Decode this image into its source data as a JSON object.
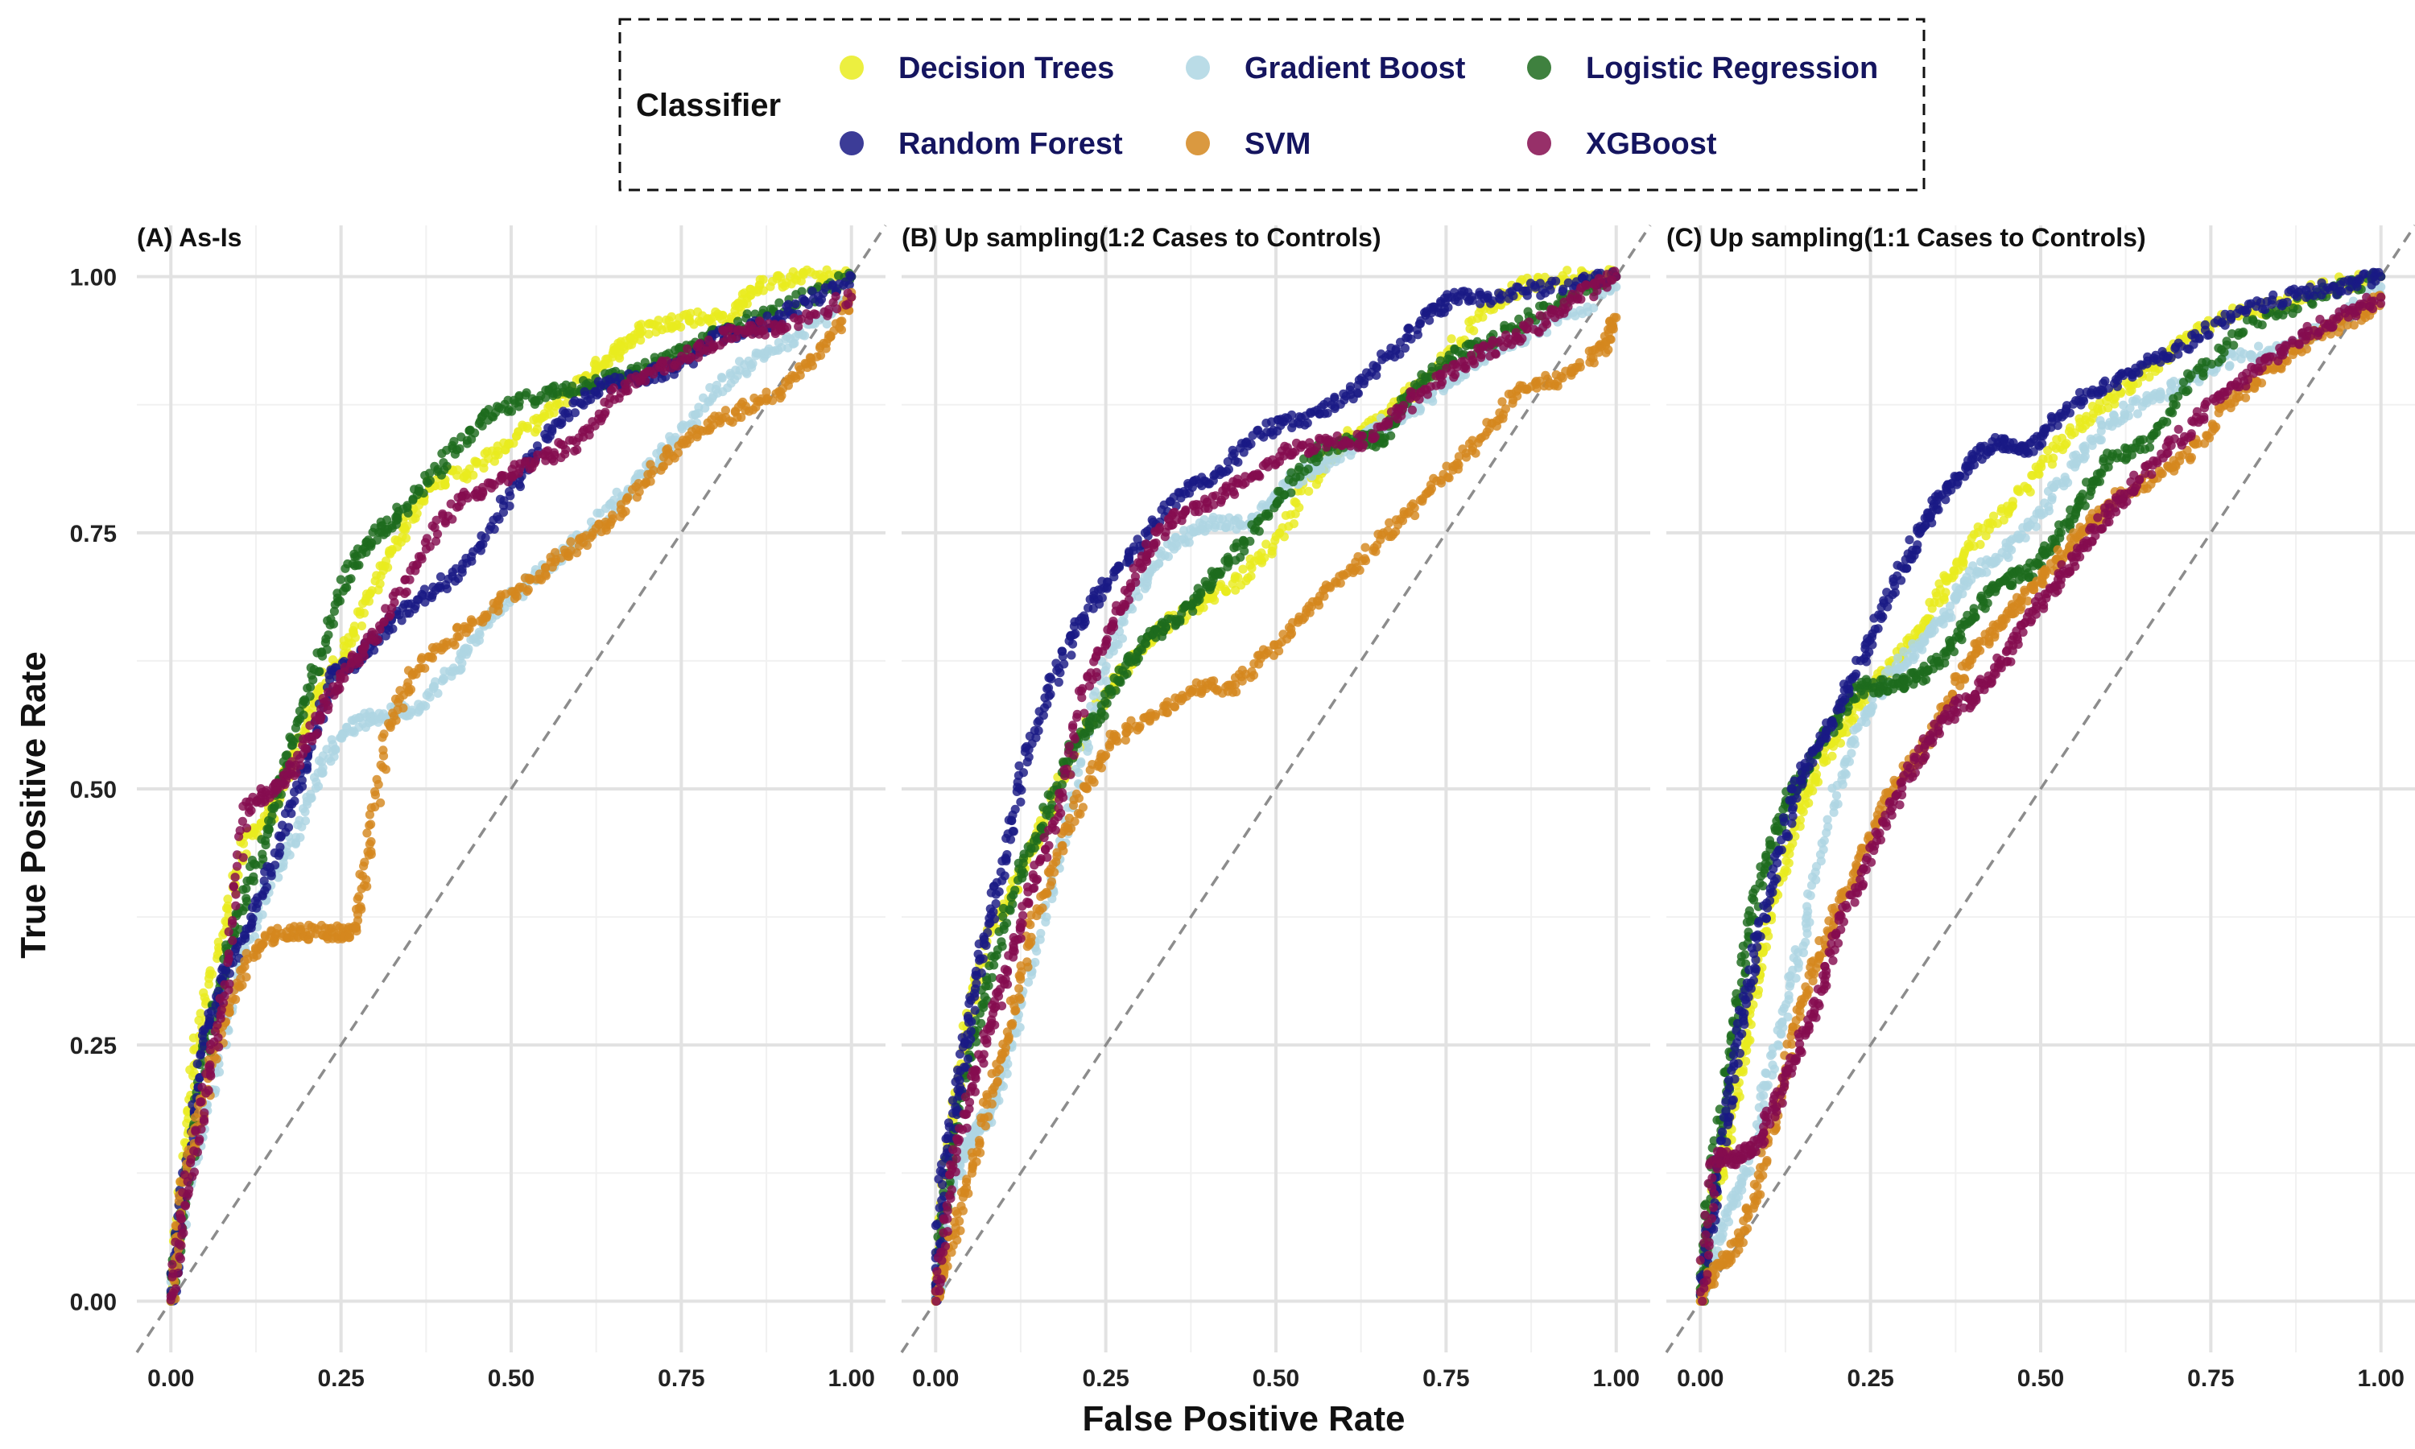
{
  "chart_data": {
    "type": "scatter",
    "xlabel": "False Positive Rate",
    "ylabel": "True Positive Rate",
    "xlim": [
      -0.05,
      1.05
    ],
    "ylim": [
      -0.05,
      1.05
    ],
    "x_ticks": [
      "0.00",
      "0.25",
      "0.50",
      "0.75",
      "1.00"
    ],
    "y_ticks": [
      "0.00",
      "0.25",
      "0.50",
      "0.75",
      "1.00"
    ],
    "grid": true,
    "reference_line": "diagonal dashed",
    "legend": {
      "title": "Classifier",
      "placement": "top-center",
      "entries": [
        {
          "name": "Decision Trees",
          "color": "#e9ec1f"
        },
        {
          "name": "Gradient Boost",
          "color": "#aed6e3"
        },
        {
          "name": "Logistic Regression",
          "color": "#1d6b1d"
        },
        {
          "name": "Random Forest",
          "color": "#1a1a85"
        },
        {
          "name": "SVM",
          "color": "#d4871e"
        },
        {
          "name": "XGBoost",
          "color": "#850c4f"
        }
      ]
    },
    "panels": [
      {
        "title": "(A) As-Is",
        "series": [
          {
            "name": "Decision Trees",
            "x": [
              0,
              0.02,
              0.04,
              0.08,
              0.11,
              0.15,
              0.18,
              0.22,
              0.26,
              0.3,
              0.34,
              0.38,
              0.44,
              0.5,
              0.56,
              0.62,
              0.66,
              0.7,
              0.76,
              0.82,
              0.86,
              0.92,
              1.0
            ],
            "y": [
              0,
              0.15,
              0.26,
              0.37,
              0.45,
              0.48,
              0.53,
              0.6,
              0.64,
              0.7,
              0.75,
              0.8,
              0.81,
              0.84,
              0.87,
              0.91,
              0.93,
              0.95,
              0.96,
              0.96,
              0.99,
              1.0,
              1.0
            ]
          },
          {
            "name": "Gradient Boost",
            "x": [
              0,
              0.03,
              0.06,
              0.1,
              0.14,
              0.18,
              0.22,
              0.26,
              0.3,
              0.36,
              0.42,
              0.46,
              0.52,
              0.58,
              0.64,
              0.7,
              0.74,
              0.8,
              0.86,
              0.92,
              1.0
            ],
            "y": [
              0,
              0.13,
              0.2,
              0.33,
              0.4,
              0.45,
              0.52,
              0.56,
              0.57,
              0.58,
              0.62,
              0.66,
              0.7,
              0.73,
              0.77,
              0.81,
              0.84,
              0.89,
              0.92,
              0.94,
              0.98
            ]
          },
          {
            "name": "Logistic Regression",
            "x": [
              0,
              0.02,
              0.05,
              0.08,
              0.11,
              0.15,
              0.18,
              0.22,
              0.26,
              0.3,
              0.34,
              0.4,
              0.46,
              0.52,
              0.58,
              0.64,
              0.7,
              0.76,
              0.82,
              0.9,
              1.0
            ],
            "y": [
              0,
              0.1,
              0.24,
              0.33,
              0.4,
              0.47,
              0.55,
              0.63,
              0.71,
              0.75,
              0.77,
              0.82,
              0.86,
              0.88,
              0.89,
              0.9,
              0.91,
              0.93,
              0.95,
              0.97,
              1.0
            ]
          },
          {
            "name": "Random Forest",
            "x": [
              0,
              0.02,
              0.05,
              0.08,
              0.12,
              0.16,
              0.2,
              0.24,
              0.28,
              0.32,
              0.38,
              0.44,
              0.5,
              0.56,
              0.62,
              0.68,
              0.74,
              0.8,
              0.86,
              0.92,
              1.0
            ],
            "y": [
              0,
              0.12,
              0.26,
              0.32,
              0.37,
              0.45,
              0.53,
              0.61,
              0.63,
              0.66,
              0.69,
              0.72,
              0.79,
              0.85,
              0.89,
              0.9,
              0.91,
              0.94,
              0.95,
              0.97,
              1.0
            ]
          },
          {
            "name": "SVM",
            "x": [
              0,
              0.02,
              0.05,
              0.08,
              0.12,
              0.16,
              0.2,
              0.24,
              0.27,
              0.29,
              0.32,
              0.36,
              0.42,
              0.48,
              0.54,
              0.6,
              0.66,
              0.72,
              0.78,
              0.84,
              0.9,
              0.96,
              1.0
            ],
            "y": [
              0,
              0.12,
              0.2,
              0.28,
              0.34,
              0.36,
              0.36,
              0.36,
              0.36,
              0.44,
              0.56,
              0.62,
              0.65,
              0.68,
              0.71,
              0.74,
              0.77,
              0.82,
              0.85,
              0.87,
              0.89,
              0.93,
              0.98
            ]
          },
          {
            "name": "XGBoost",
            "x": [
              0,
              0.02,
              0.05,
              0.08,
              0.11,
              0.15,
              0.18,
              0.22,
              0.26,
              0.3,
              0.36,
              0.42,
              0.48,
              0.54,
              0.6,
              0.66,
              0.72,
              0.78,
              0.84,
              0.9,
              1.0
            ],
            "y": [
              0,
              0.1,
              0.2,
              0.3,
              0.48,
              0.5,
              0.52,
              0.57,
              0.62,
              0.65,
              0.72,
              0.78,
              0.8,
              0.82,
              0.84,
              0.89,
              0.91,
              0.93,
              0.95,
              0.95,
              0.98
            ]
          }
        ]
      },
      {
        "title": "(B) Up sampling(1:2 Cases to Controls)",
        "series": [
          {
            "name": "Decision Trees",
            "x": [
              0,
              0.02,
              0.05,
              0.08,
              0.12,
              0.16,
              0.2,
              0.24,
              0.28,
              0.32,
              0.38,
              0.44,
              0.5,
              0.56,
              0.6,
              0.66,
              0.72,
              0.8,
              0.86,
              0.92,
              1.0
            ],
            "y": [
              0,
              0.15,
              0.28,
              0.36,
              0.41,
              0.47,
              0.53,
              0.58,
              0.62,
              0.65,
              0.68,
              0.7,
              0.74,
              0.81,
              0.84,
              0.86,
              0.9,
              0.96,
              0.99,
              1.0,
              1.0
            ]
          },
          {
            "name": "Gradient Boost",
            "x": [
              0,
              0.02,
              0.04,
              0.06,
              0.08,
              0.1,
              0.13,
              0.17,
              0.21,
              0.25,
              0.3,
              0.35,
              0.4,
              0.46,
              0.52,
              0.58,
              0.64,
              0.7,
              0.76,
              0.82,
              0.9,
              1.0
            ],
            "y": [
              0,
              0.1,
              0.14,
              0.17,
              0.18,
              0.22,
              0.3,
              0.4,
              0.52,
              0.62,
              0.7,
              0.74,
              0.76,
              0.76,
              0.8,
              0.82,
              0.85,
              0.87,
              0.9,
              0.93,
              0.95,
              0.99
            ]
          },
          {
            "name": "Logistic Regression",
            "x": [
              0,
              0.02,
              0.05,
              0.08,
              0.12,
              0.16,
              0.2,
              0.24,
              0.28,
              0.32,
              0.36,
              0.4,
              0.44,
              0.5,
              0.56,
              0.62,
              0.66,
              0.7,
              0.76,
              0.82,
              0.9,
              1.0
            ],
            "y": [
              0,
              0.14,
              0.24,
              0.32,
              0.41,
              0.47,
              0.54,
              0.57,
              0.62,
              0.65,
              0.67,
              0.7,
              0.73,
              0.78,
              0.83,
              0.84,
              0.84,
              0.89,
              0.92,
              0.94,
              0.97,
              1.0
            ]
          },
          {
            "name": "Random Forest",
            "x": [
              0,
              0.01,
              0.03,
              0.05,
              0.07,
              0.1,
              0.13,
              0.17,
              0.21,
              0.25,
              0.3,
              0.36,
              0.42,
              0.48,
              0.54,
              0.6,
              0.66,
              0.72,
              0.76,
              0.82,
              0.9,
              1.0
            ],
            "y": [
              0,
              0.12,
              0.2,
              0.27,
              0.35,
              0.43,
              0.52,
              0.6,
              0.66,
              0.7,
              0.74,
              0.79,
              0.81,
              0.85,
              0.86,
              0.88,
              0.92,
              0.96,
              0.98,
              0.98,
              0.99,
              1.0
            ]
          },
          {
            "name": "SVM",
            "x": [
              0,
              0.02,
              0.05,
              0.08,
              0.11,
              0.14,
              0.18,
              0.22,
              0.26,
              0.32,
              0.38,
              0.44,
              0.5,
              0.56,
              0.62,
              0.68,
              0.74,
              0.8,
              0.86,
              0.92,
              0.98,
              1.0
            ],
            "y": [
              0,
              0.05,
              0.12,
              0.2,
              0.27,
              0.36,
              0.44,
              0.5,
              0.55,
              0.57,
              0.6,
              0.6,
              0.64,
              0.68,
              0.72,
              0.76,
              0.8,
              0.84,
              0.89,
              0.9,
              0.93,
              0.96
            ]
          },
          {
            "name": "XGBoost",
            "x": [
              0,
              0.02,
              0.05,
              0.08,
              0.11,
              0.14,
              0.18,
              0.22,
              0.26,
              0.3,
              0.34,
              0.4,
              0.46,
              0.52,
              0.58,
              0.64,
              0.7,
              0.76,
              0.82,
              0.88,
              0.94,
              1.0
            ],
            "y": [
              0,
              0.12,
              0.2,
              0.27,
              0.33,
              0.4,
              0.48,
              0.6,
              0.66,
              0.72,
              0.76,
              0.78,
              0.8,
              0.83,
              0.84,
              0.84,
              0.88,
              0.91,
              0.93,
              0.95,
              0.98,
              1.0
            ]
          }
        ]
      },
      {
        "title": "(C) Up sampling(1:1 Cases to Controls)",
        "series": [
          {
            "name": "Decision Trees",
            "x": [
              0,
              0.02,
              0.04,
              0.06,
              0.08,
              0.1,
              0.13,
              0.16,
              0.2,
              0.24,
              0.28,
              0.32,
              0.36,
              0.4,
              0.46,
              0.52,
              0.58,
              0.64,
              0.7,
              0.76,
              0.84,
              0.92,
              1.0
            ],
            "y": [
              0,
              0.1,
              0.16,
              0.23,
              0.3,
              0.37,
              0.44,
              0.5,
              0.55,
              0.59,
              0.62,
              0.65,
              0.7,
              0.74,
              0.78,
              0.83,
              0.87,
              0.9,
              0.93,
              0.96,
              0.97,
              0.99,
              1.0
            ]
          },
          {
            "name": "Gradient Boost",
            "x": [
              0,
              0.02,
              0.05,
              0.08,
              0.1,
              0.13,
              0.16,
              0.2,
              0.24,
              0.28,
              0.32,
              0.36,
              0.4,
              0.45,
              0.5,
              0.55,
              0.6,
              0.66,
              0.72,
              0.78,
              0.86,
              0.92,
              1.0
            ],
            "y": [
              0,
              0.05,
              0.1,
              0.15,
              0.22,
              0.3,
              0.38,
              0.5,
              0.57,
              0.61,
              0.64,
              0.67,
              0.71,
              0.73,
              0.77,
              0.82,
              0.86,
              0.88,
              0.9,
              0.92,
              0.93,
              0.95,
              0.99
            ]
          },
          {
            "name": "Logistic Regression",
            "x": [
              0,
              0.01,
              0.03,
              0.05,
              0.07,
              0.1,
              0.13,
              0.16,
              0.2,
              0.24,
              0.28,
              0.32,
              0.36,
              0.4,
              0.44,
              0.48,
              0.52,
              0.56,
              0.6,
              0.66,
              0.72,
              0.8,
              0.9,
              1.0
            ],
            "y": [
              0,
              0.08,
              0.18,
              0.27,
              0.36,
              0.44,
              0.49,
              0.53,
              0.57,
              0.6,
              0.6,
              0.61,
              0.63,
              0.67,
              0.7,
              0.71,
              0.74,
              0.78,
              0.82,
              0.84,
              0.9,
              0.95,
              0.98,
              1.0
            ]
          },
          {
            "name": "Random Forest",
            "x": [
              0,
              0.02,
              0.04,
              0.06,
              0.08,
              0.11,
              0.14,
              0.18,
              0.22,
              0.26,
              0.3,
              0.33,
              0.36,
              0.4,
              0.44,
              0.48,
              0.52,
              0.58,
              0.64,
              0.7,
              0.78,
              0.86,
              0.94,
              1.0
            ],
            "y": [
              0,
              0.1,
              0.18,
              0.27,
              0.34,
              0.42,
              0.5,
              0.55,
              0.6,
              0.66,
              0.72,
              0.76,
              0.79,
              0.82,
              0.84,
              0.83,
              0.86,
              0.89,
              0.91,
              0.93,
              0.96,
              0.98,
              0.99,
              1.0
            ]
          },
          {
            "name": "SVM",
            "x": [
              0,
              0.02,
              0.05,
              0.08,
              0.11,
              0.14,
              0.17,
              0.2,
              0.24,
              0.28,
              0.32,
              0.36,
              0.4,
              0.44,
              0.48,
              0.52,
              0.56,
              0.6,
              0.66,
              0.72,
              0.78,
              0.84,
              0.9,
              0.96,
              1.0
            ],
            "y": [
              0,
              0.03,
              0.05,
              0.1,
              0.18,
              0.27,
              0.33,
              0.38,
              0.44,
              0.5,
              0.53,
              0.58,
              0.63,
              0.66,
              0.69,
              0.72,
              0.75,
              0.78,
              0.8,
              0.83,
              0.88,
              0.91,
              0.94,
              0.96,
              0.98
            ]
          },
          {
            "name": "XGBoost",
            "x": [
              0,
              0.02,
              0.05,
              0.08,
              0.11,
              0.14,
              0.17,
              0.2,
              0.24,
              0.28,
              0.32,
              0.36,
              0.4,
              0.44,
              0.48,
              0.52,
              0.56,
              0.6,
              0.64,
              0.7,
              0.76,
              0.82,
              0.88,
              0.94,
              1.0
            ],
            "y": [
              0,
              0.14,
              0.14,
              0.15,
              0.19,
              0.24,
              0.29,
              0.36,
              0.42,
              0.48,
              0.53,
              0.57,
              0.59,
              0.62,
              0.66,
              0.7,
              0.73,
              0.77,
              0.8,
              0.84,
              0.88,
              0.91,
              0.94,
              0.96,
              0.98
            ]
          }
        ]
      }
    ]
  }
}
